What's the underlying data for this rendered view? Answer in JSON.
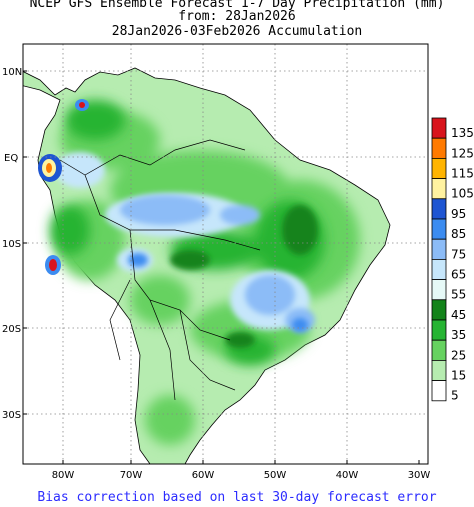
{
  "header": {
    "line1": "NCEP GFS Ensemble Forecast 1-7 Day Precipitation (mm)",
    "line2": "from: 28Jan2026",
    "line3": "28Jan2026-03Feb2026 Accumulation"
  },
  "axes": {
    "lat_labels": [
      "10N",
      "EQ",
      "10S",
      "20S",
      "30S"
    ],
    "lon_labels": [
      "80W",
      "70W",
      "60W",
      "50W",
      "40W",
      "30W"
    ]
  },
  "legend": {
    "labels": [
      "135",
      "125",
      "115",
      "105",
      "95",
      "85",
      "75",
      "65",
      "55",
      "45",
      "35",
      "25",
      "15",
      "5"
    ],
    "colors": [
      "#d8141c",
      "#ff7a00",
      "#ffb400",
      "#fff2a0",
      "#1e55d2",
      "#3c8cf0",
      "#8cbcf7",
      "#c6e6fb",
      "#e6f9f7",
      "#13831a",
      "#26b433",
      "#66d260",
      "#b6ecb0",
      "#ffffff"
    ]
  },
  "footer": {
    "text": "Bias correction based on last 30-day forecast error"
  }
}
